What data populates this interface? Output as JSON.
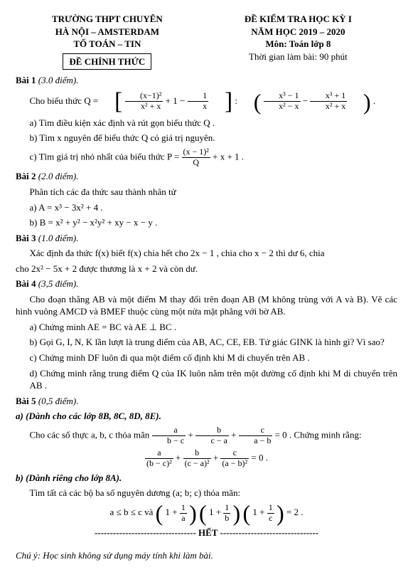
{
  "header": {
    "left": {
      "l1": "TRƯỜNG THPT CHUYÊN",
      "l2": "HÀ NỘI – AMSTERDAM",
      "l3": "TỔ TOÁN – TIN",
      "box": "ĐỀ CHÍNH THỨC"
    },
    "right": {
      "l1": "ĐỀ KIỂM TRA HỌC KỲ I",
      "l2": "NĂM HỌC 2019 – 2020",
      "l3": "Môn: Toán lớp 8",
      "l4": "Thời gian làm bài: 90 phút"
    }
  },
  "bai1": {
    "title": "Bài 1",
    "pts": "(3.0 điểm).",
    "intro_pre": "Cho biểu thức  Q = ",
    "b1_num": "(x−1)²",
    "b1_den": "x² + x",
    "mid1": " + 1 − ",
    "b2_num": "1",
    "b2_den": "x",
    "colon": " : ",
    "p1_num": "x³ − 1",
    "p1_den": "x² − x",
    "minus": " − ",
    "p2_num": "x³ + 1",
    "p2_den": "x² + x",
    "dot": " .",
    "a": "a)  Tìm điều kiện xác định và rút gọn biểu thức Q .",
    "b": "b)  Tìm x nguyên để biểu thức Q có giá trị nguyên.",
    "c_pre": "c)  Tìm giá trị nhỏ nhất của biểu thức  P = ",
    "c_num": "(x − 1)²",
    "c_den": "Q",
    "c_post": " + x + 1 ."
  },
  "bai2": {
    "title": "Bài 2",
    "pts": "(2.0 điểm).",
    "intro": "Phân tích các đa thức sau thành nhân tử",
    "a": "a)   A = x³ − 3x² + 4 .",
    "b": "b)   B = x² + y² − x²y² + xy − x − y ."
  },
  "bai3": {
    "title": "Bài 3",
    "pts": "(1.0 điểm).",
    "l1": "Xác định đa thức  f(x)  biết  f(x)  chia hết cho  2x − 1 , chia cho  x − 2  thì dư 6, chia",
    "l2": "cho  2x² − 5x + 2  được thương là  x + 2  và còn dư."
  },
  "bai4": {
    "title": "Bài 4",
    "pts": "(3,5 điểm).",
    "intro": "Cho đoạn thẳng AB và một điểm M thay đổi trên đoạn AB (M không trùng với A và B). Vẽ các hình vuông AMCD và BMEF thuộc cùng một nửa mặt phẳng với bờ AB.",
    "a": "a)  Chứng minh  AE = BC  và  AE ⊥ BC .",
    "b": "b)  Gọi G, I, N, K lần lượt là trung điểm của AB, AC, CE, EB. Tứ giác GINK là hình gì? Vì sao?",
    "c": "c)  Chứng minh DF luôn đi qua một điểm cố định khi M di chuyển trên AB .",
    "d": "d)  Chứng minh rằng trung điểm Q của IK luôn nằm trên một đường cố định khi M di chuyển trên AB ."
  },
  "bai5": {
    "title": "Bài 5",
    "pts": "(0,5 điểm).",
    "a_title": "a) (Dành cho các lớp 8B, 8C, 8D, 8E).",
    "a_pre": "Cho các số thực  a, b, c  thỏa mãn  ",
    "eq1_t1_num": "a",
    "eq1_t1_den": "b − c",
    "eq1_t2_num": "b",
    "eq1_t2_den": "c − a",
    "eq1_t3_num": "c",
    "eq1_t3_den": "a − b",
    "eq1_post": " = 0 . Chứng minh rằng:",
    "eq2_t1_num": "a",
    "eq2_t1_den": "(b − c)²",
    "eq2_t2_num": "b",
    "eq2_t2_den": "(c − a)²",
    "eq2_t3_num": "c",
    "eq2_t3_den": "(a − b)²",
    "eq2_post": " = 0 .",
    "b_title": "b) (Dành riêng cho lớp 8A).",
    "b_intro": "Tìm tất cả các bộ ba số nguyên dương (a; b; c) thỏa mãn:",
    "ineq_pre": "a ≤ b ≤ c  và  ",
    "g1_num": "1",
    "g1_den": "a",
    "g2_num": "1",
    "g2_den": "b",
    "g3_num": "1",
    "g3_den": "c",
    "ineq_post": " = 2 ."
  },
  "het": "--------------------------------- HẾT --------------------------------",
  "footnote": "Chú ý: Học sinh không sử dụng máy tính khi làm bài."
}
